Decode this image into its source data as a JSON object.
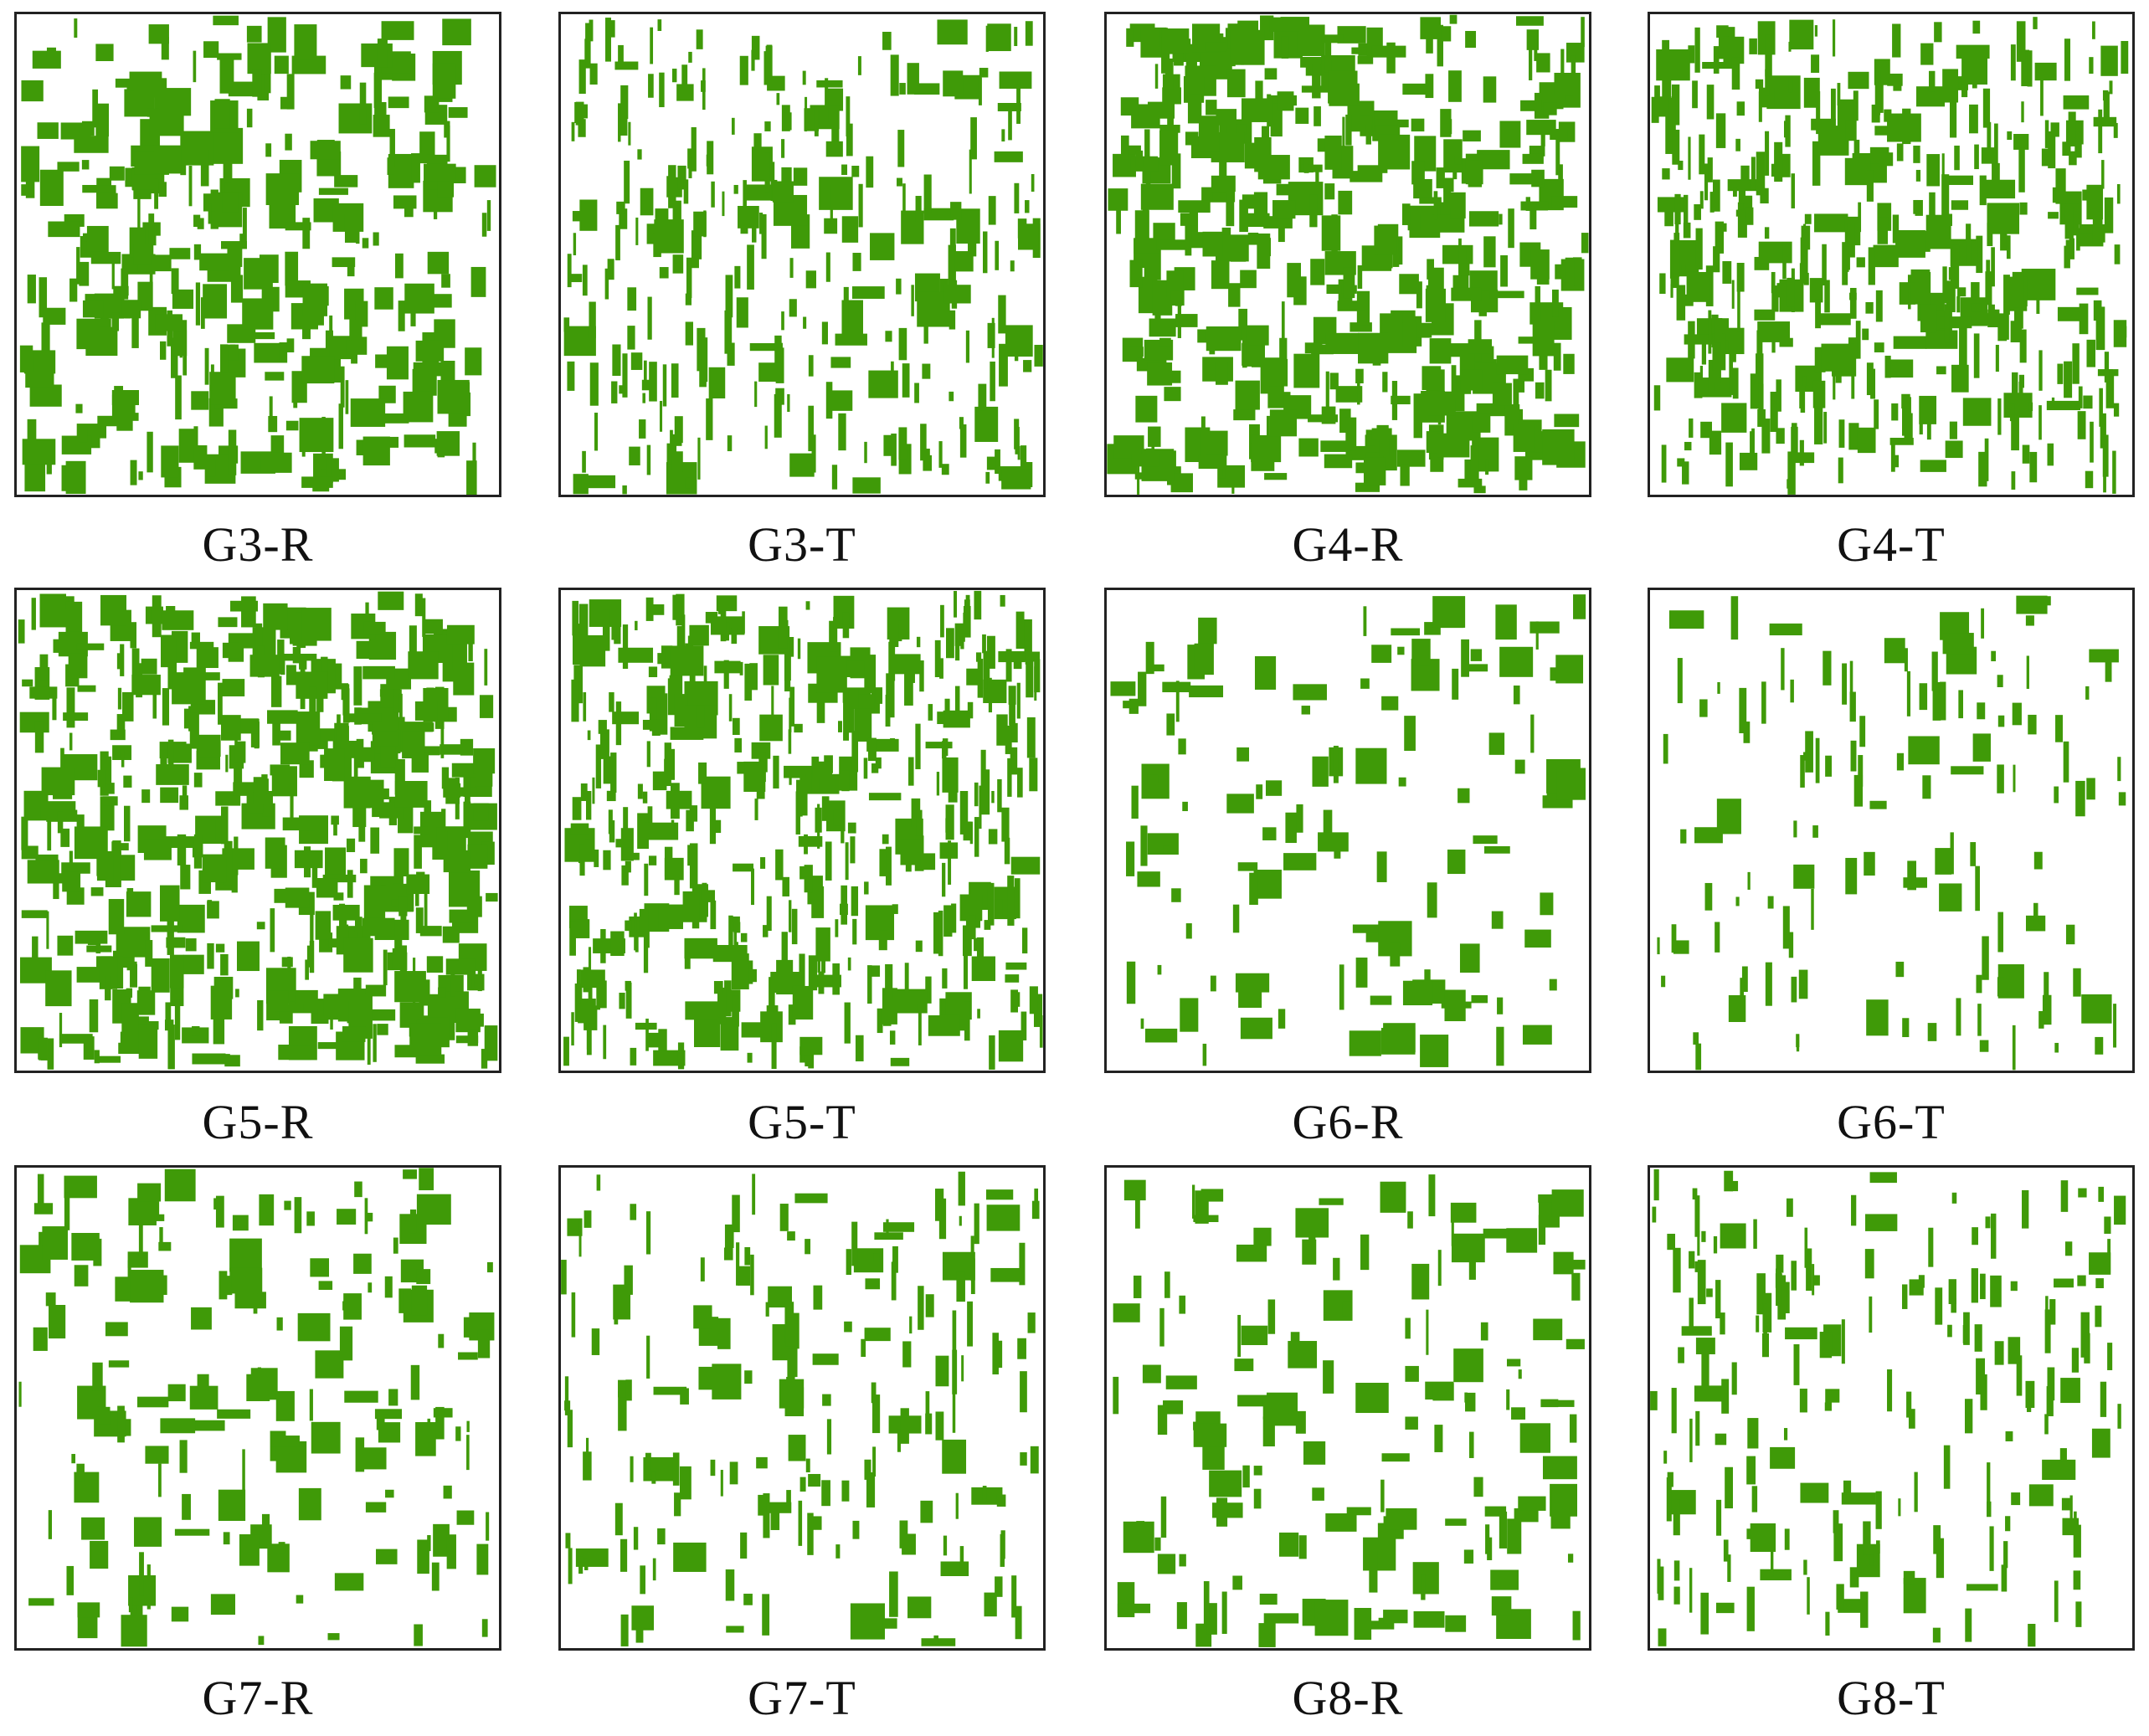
{
  "colors": {
    "vegetation": "#3f9a08",
    "background": "#ffffff",
    "frame": "#222222"
  },
  "panels": [
    {
      "label": "G3-R",
      "density": 0.32,
      "streakiness": 0.25
    },
    {
      "label": "G3-T",
      "density": 0.3,
      "streakiness": 0.75
    },
    {
      "label": "G4-R",
      "density": 0.45,
      "streakiness": 0.2
    },
    {
      "label": "G4-T",
      "density": 0.44,
      "streakiness": 0.7
    },
    {
      "label": "G5-R",
      "density": 0.52,
      "streakiness": 0.3
    },
    {
      "label": "G5-T",
      "density": 0.48,
      "streakiness": 0.7
    },
    {
      "label": "G6-R",
      "density": 0.09,
      "streakiness": 0.3
    },
    {
      "label": "G6-T",
      "density": 0.1,
      "streakiness": 0.8
    },
    {
      "label": "G7-R",
      "density": 0.14,
      "streakiness": 0.3
    },
    {
      "label": "G7-T",
      "density": 0.16,
      "streakiness": 0.75
    },
    {
      "label": "G8-R",
      "density": 0.12,
      "streakiness": 0.3
    },
    {
      "label": "G8-T",
      "density": 0.17,
      "streakiness": 0.8
    }
  ]
}
